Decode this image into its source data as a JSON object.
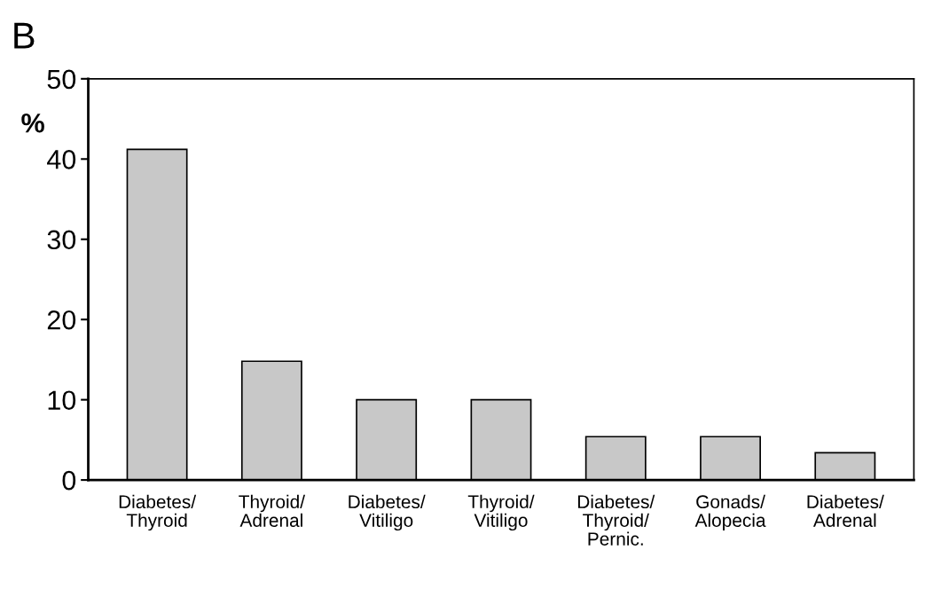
{
  "chart_data": {
    "type": "bar",
    "title": "B",
    "ylabel": "%",
    "categories": [
      "Diabetes/\nThyroid",
      "Thyroid/\nAdrenal",
      "Diabetes/\nVitiligo",
      "Thyroid/\nVitiligo",
      "Diabetes/\nThyroid/\nPernic.",
      "Gonads/\nAlopecia",
      "Diabetes/\nAdrenal"
    ],
    "values": [
      41.2,
      14.8,
      10,
      10,
      5.4,
      5.4,
      3.4
    ],
    "color": "#c8c8c8",
    "ylim": [
      0,
      50
    ],
    "yticks": [
      0,
      10,
      20,
      30,
      40,
      50
    ],
    "grid": false,
    "legend": false
  }
}
